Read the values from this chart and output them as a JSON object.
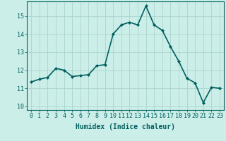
{
  "x": [
    0,
    1,
    2,
    3,
    4,
    5,
    6,
    7,
    8,
    9,
    10,
    11,
    12,
    13,
    14,
    15,
    16,
    17,
    18,
    19,
    20,
    21,
    22,
    23
  ],
  "y": [
    11.35,
    11.5,
    11.6,
    12.1,
    12.0,
    11.65,
    11.7,
    11.75,
    12.25,
    12.3,
    14.0,
    14.5,
    14.65,
    14.5,
    15.55,
    14.5,
    14.2,
    13.3,
    12.5,
    11.55,
    11.3,
    10.2,
    11.05,
    11.0
  ],
  "line_color": "#006060",
  "marker": "D",
  "marker_size": 2,
  "bg_color": "#cceee8",
  "grid_color": "#aad4ce",
  "xlabel": "Humidex (Indice chaleur)",
  "xlim": [
    -0.5,
    23.5
  ],
  "ylim": [
    9.8,
    15.8
  ],
  "yticks": [
    10,
    11,
    12,
    13,
    14,
    15
  ],
  "xticks": [
    0,
    1,
    2,
    3,
    4,
    5,
    6,
    7,
    8,
    9,
    10,
    11,
    12,
    13,
    14,
    15,
    16,
    17,
    18,
    19,
    20,
    21,
    22,
    23
  ],
  "xtick_labels": [
    "0",
    "1",
    "2",
    "3",
    "4",
    "5",
    "6",
    "7",
    "8",
    "9",
    "10",
    "11",
    "12",
    "13",
    "14",
    "15",
    "16",
    "17",
    "18",
    "19",
    "20",
    "21",
    "22",
    "23"
  ],
  "tick_color": "#006060",
  "label_fontsize": 7,
  "tick_fontsize": 6,
  "line_width": 1.2,
  "spine_color": "#006060"
}
